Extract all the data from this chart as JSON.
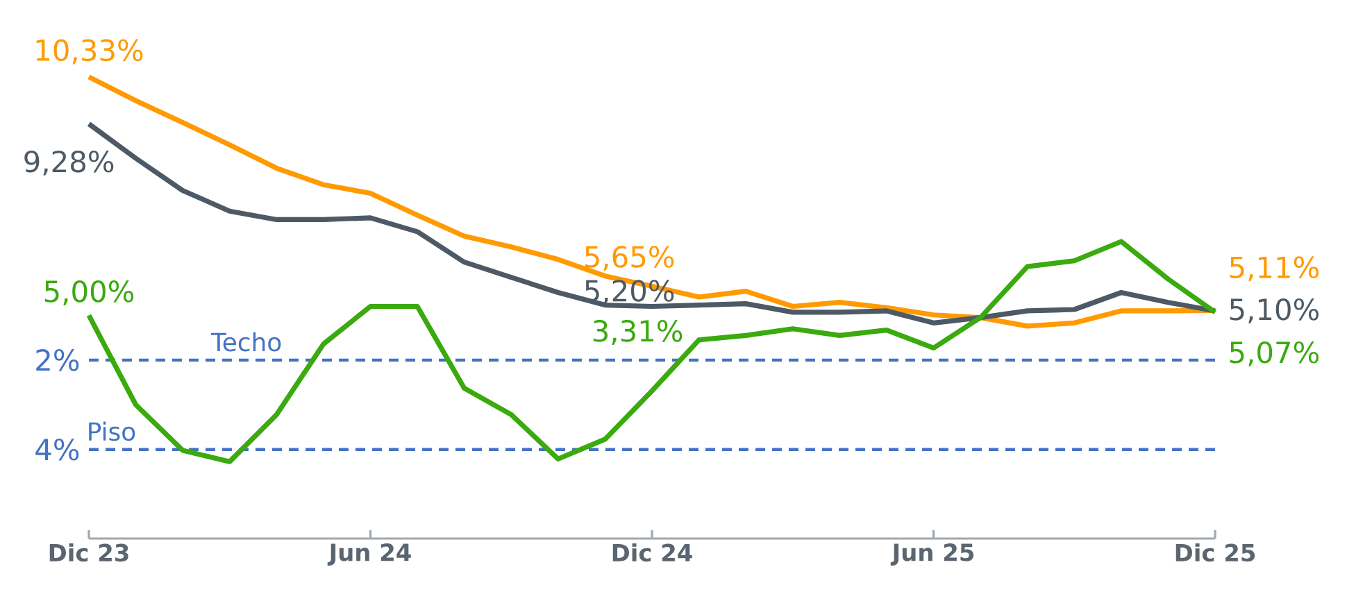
{
  "chart_data": {
    "type": "line",
    "x": [
      "2023-12",
      "2024-01",
      "2024-02",
      "2024-03",
      "2024-04",
      "2024-05",
      "2024-06",
      "2024-07",
      "2024-08",
      "2024-09",
      "2024-10",
      "2024-11",
      "2024-12",
      "2025-01",
      "2025-02",
      "2025-03",
      "2025-04",
      "2025-05",
      "2025-06",
      "2025-07",
      "2025-08",
      "2025-09",
      "2025-10",
      "2025-11",
      "2025-12"
    ],
    "xlim": [
      "2023-12",
      "2025-12"
    ],
    "xticks": [
      {
        "value": "2023-12",
        "label": "Dic 23"
      },
      {
        "value": "2024-06",
        "label": "Jun 24"
      },
      {
        "value": "2024-12",
        "label": "Dic 24"
      },
      {
        "value": "2025-06",
        "label": "Jun 25"
      },
      {
        "value": "2025-12",
        "label": "Dic 25"
      }
    ],
    "tick_labels": "x",
    "series": [
      {
        "color": "#ff9a00",
        "values": [
          10.33,
          9.8,
          9.31,
          8.81,
          8.29,
          7.92,
          7.73,
          7.24,
          6.77,
          6.53,
          6.25,
          5.88,
          5.65,
          5.41,
          5.54,
          5.2,
          5.29,
          5.17,
          5.01,
          4.95,
          4.76,
          4.83,
          5.1,
          5.1,
          5.11
        ],
        "value_labels": [
          "10,33%",
          null,
          null,
          null,
          null,
          null,
          null,
          null,
          null,
          null,
          null,
          null,
          "5,65%",
          null,
          null,
          null,
          null,
          null,
          null,
          null,
          null,
          null,
          null,
          null,
          "5,11%"
        ]
      },
      {
        "color": "#4d5a65",
        "values": [
          9.28,
          8.51,
          7.79,
          7.33,
          7.14,
          7.14,
          7.18,
          6.87,
          6.19,
          5.85,
          5.51,
          5.23,
          5.2,
          5.23,
          5.26,
          5.07,
          5.07,
          5.1,
          4.83,
          4.95,
          5.1,
          5.13,
          5.51,
          5.29,
          5.1
        ],
        "value_labels": [
          "9,28%",
          null,
          null,
          null,
          null,
          null,
          null,
          null,
          null,
          null,
          null,
          null,
          "5,20%",
          null,
          null,
          null,
          null,
          null,
          null,
          null,
          null,
          null,
          null,
          null,
          "5,10%"
        ]
      },
      {
        "color": "#3aaa0e",
        "values": [
          5.0,
          3.0,
          1.98,
          1.73,
          2.78,
          4.36,
          5.2,
          5.2,
          3.37,
          2.78,
          1.79,
          2.23,
          3.31,
          4.45,
          4.55,
          4.7,
          4.55,
          4.67,
          4.27,
          4.95,
          6.09,
          6.22,
          6.65,
          5.81,
          5.07
        ],
        "value_labels": [
          "5,00%",
          null,
          null,
          null,
          null,
          null,
          null,
          null,
          null,
          null,
          null,
          null,
          "3,31%",
          null,
          null,
          null,
          null,
          null,
          null,
          null,
          null,
          null,
          null,
          null,
          "5,07%"
        ]
      }
    ],
    "ref_lines": [
      {
        "axis": "y",
        "value": 4,
        "label": "Techo",
        "color": "#4472c4",
        "line_style": "dashed"
      },
      {
        "axis": "y",
        "value": 2,
        "label": "Piso",
        "color": "#4472c4",
        "line_style": "dashed"
      }
    ],
    "annotations": [
      "2%",
      "4%"
    ]
  }
}
